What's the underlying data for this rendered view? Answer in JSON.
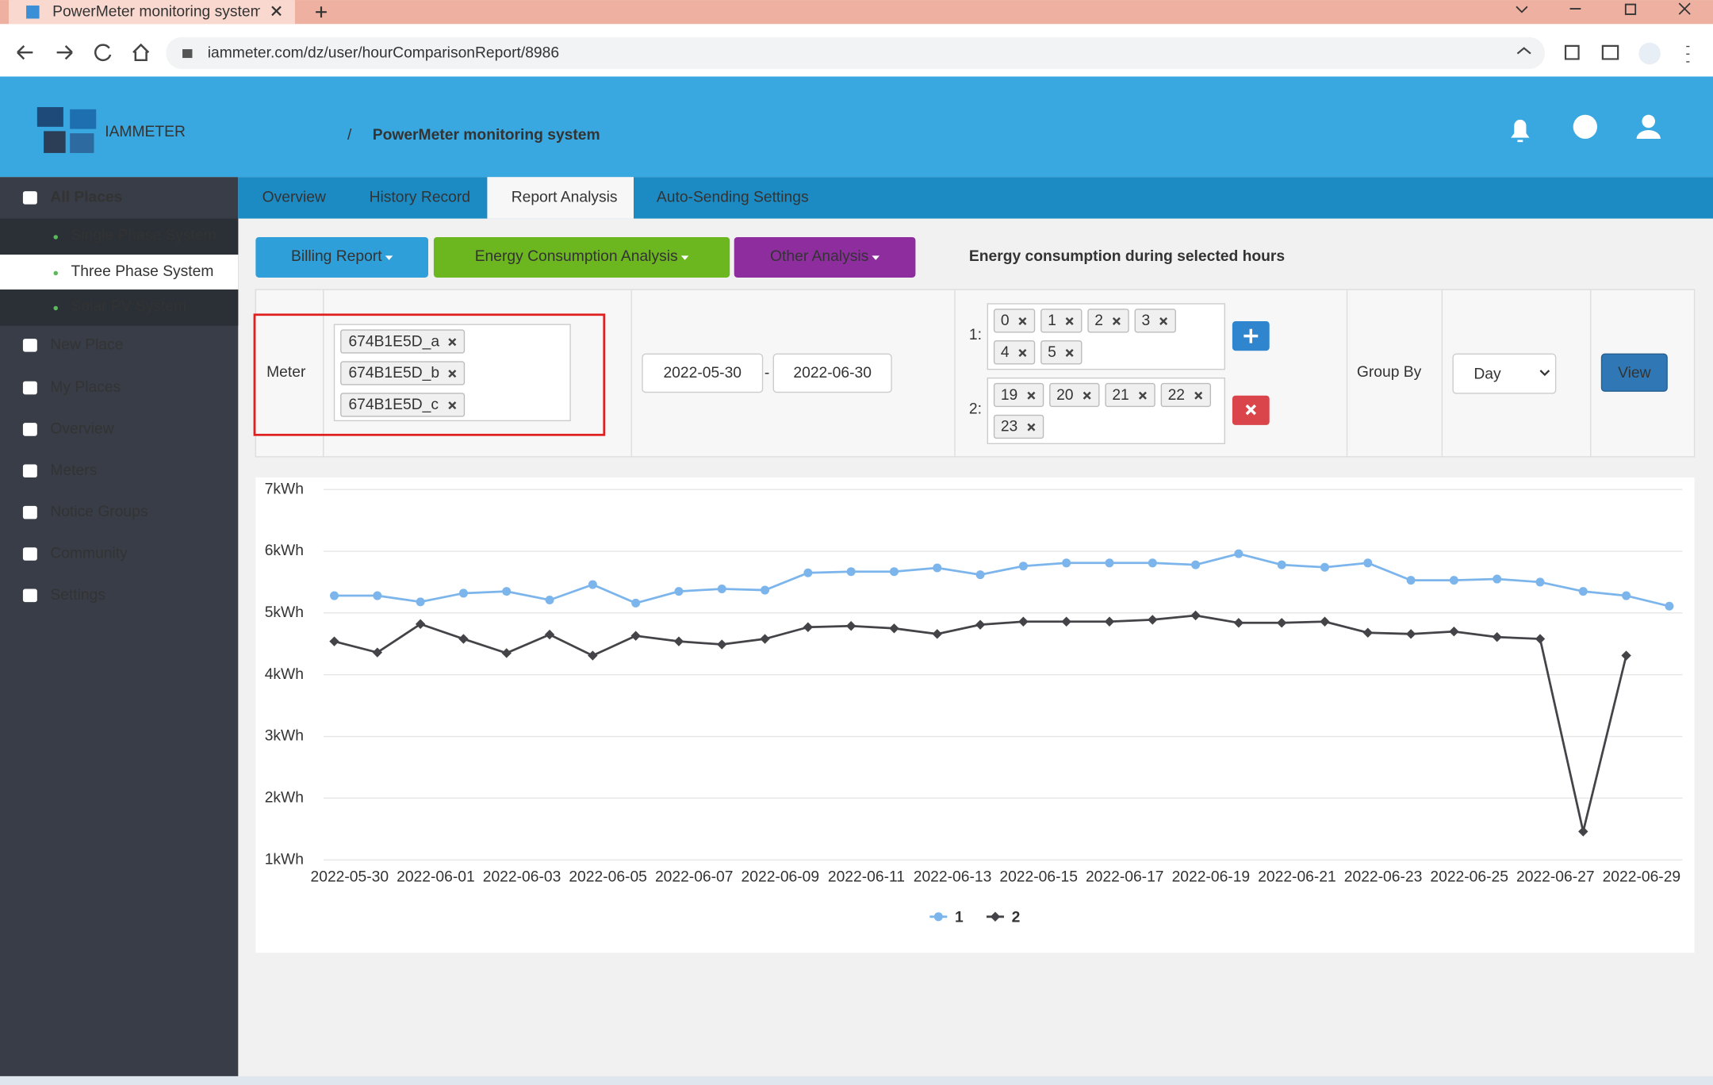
{
  "browser": {
    "tab_title": "PowerMeter monitoring system",
    "url": "iammeter.com/dz/user/hourComparisonReport/8986"
  },
  "header": {
    "logo": "IAMMETER",
    "separator": "/",
    "title": "PowerMeter monitoring system"
  },
  "sidebar": {
    "items": [
      "All Places",
      "Single Phase System",
      "Three Phase System",
      "Solar PV System",
      "New Place",
      "My Places",
      "Overview",
      "Meters",
      "Notice Groups",
      "Community",
      "Settings"
    ]
  },
  "tabs": [
    "Overview",
    "History Record",
    "Report Analysis",
    "Auto-Sending Settings"
  ],
  "buttons": [
    "Billing Report",
    "Energy Consumption Analysis",
    "Other Analysis"
  ],
  "report_title": "Energy consumption during selected hours",
  "form": {
    "meter_label": "Meter",
    "meters": [
      "674B1E5D_a",
      "674B1E5D_b",
      "674B1E5D_c"
    ],
    "start_date": "2022-05-30",
    "date_separator": "-",
    "end_date": "2022-06-30",
    "hour_groups": [
      {
        "label": "1:",
        "hours": [
          "0",
          "1",
          "2",
          "3",
          "4",
          "5"
        ]
      },
      {
        "label": "2:",
        "hours": [
          "19",
          "20",
          "21",
          "22",
          "23"
        ]
      }
    ],
    "group_by_label": "Group By",
    "group_by": "Day",
    "view_button": "View"
  },
  "chart_data": {
    "type": "line",
    "categories": [
      "2022-05-30",
      null,
      "2022-06-01",
      null,
      "2022-06-03",
      null,
      "2022-06-05",
      null,
      "2022-06-07",
      null,
      "2022-06-09",
      null,
      "2022-06-11",
      null,
      "2022-06-13",
      null,
      "2022-06-15",
      null,
      "2022-06-17",
      null,
      "2022-06-19",
      null,
      "2022-06-21",
      null,
      "2022-06-23",
      null,
      "2022-06-25",
      null,
      "2022-06-27",
      null,
      "2022-06-29",
      null
    ],
    "series": [
      {
        "name": "1",
        "color": "#7cb5ec",
        "marker": "circle",
        "values": [
          5.28,
          5.28,
          5.18,
          5.32,
          5.35,
          5.21,
          5.46,
          5.16,
          5.35,
          5.39,
          5.37,
          5.65,
          5.67,
          5.67,
          5.73,
          5.62,
          5.76,
          5.81,
          5.81,
          5.81,
          5.78,
          5.96,
          5.78,
          5.74,
          5.81,
          5.53,
          5.53,
          5.55,
          5.5,
          5.35,
          5.28,
          5.11
        ]
      },
      {
        "name": "2",
        "color": "#434348",
        "marker": "diamond",
        "values": [
          4.54,
          4.36,
          4.82,
          4.58,
          4.35,
          4.65,
          4.31,
          4.63,
          4.54,
          4.49,
          4.58,
          4.77,
          4.79,
          4.75,
          4.66,
          4.81,
          4.86,
          4.86,
          4.86,
          4.89,
          4.96,
          4.84,
          4.84,
          4.86,
          4.68,
          4.66,
          4.7,
          4.61,
          4.58,
          1.46,
          4.31,
          null
        ]
      }
    ],
    "ylim": [
      1,
      7
    ],
    "yticks": [
      {
        "value": 1,
        "label": "1kWh"
      },
      {
        "value": 2,
        "label": "2kWh"
      },
      {
        "value": 3,
        "label": "3kWh"
      },
      {
        "value": 4,
        "label": "4kWh"
      },
      {
        "value": 5,
        "label": "5kWh"
      },
      {
        "value": 6,
        "label": "6kWh"
      },
      {
        "value": 7,
        "label": "7kWh"
      }
    ],
    "grid": true,
    "legend": "bottom"
  }
}
